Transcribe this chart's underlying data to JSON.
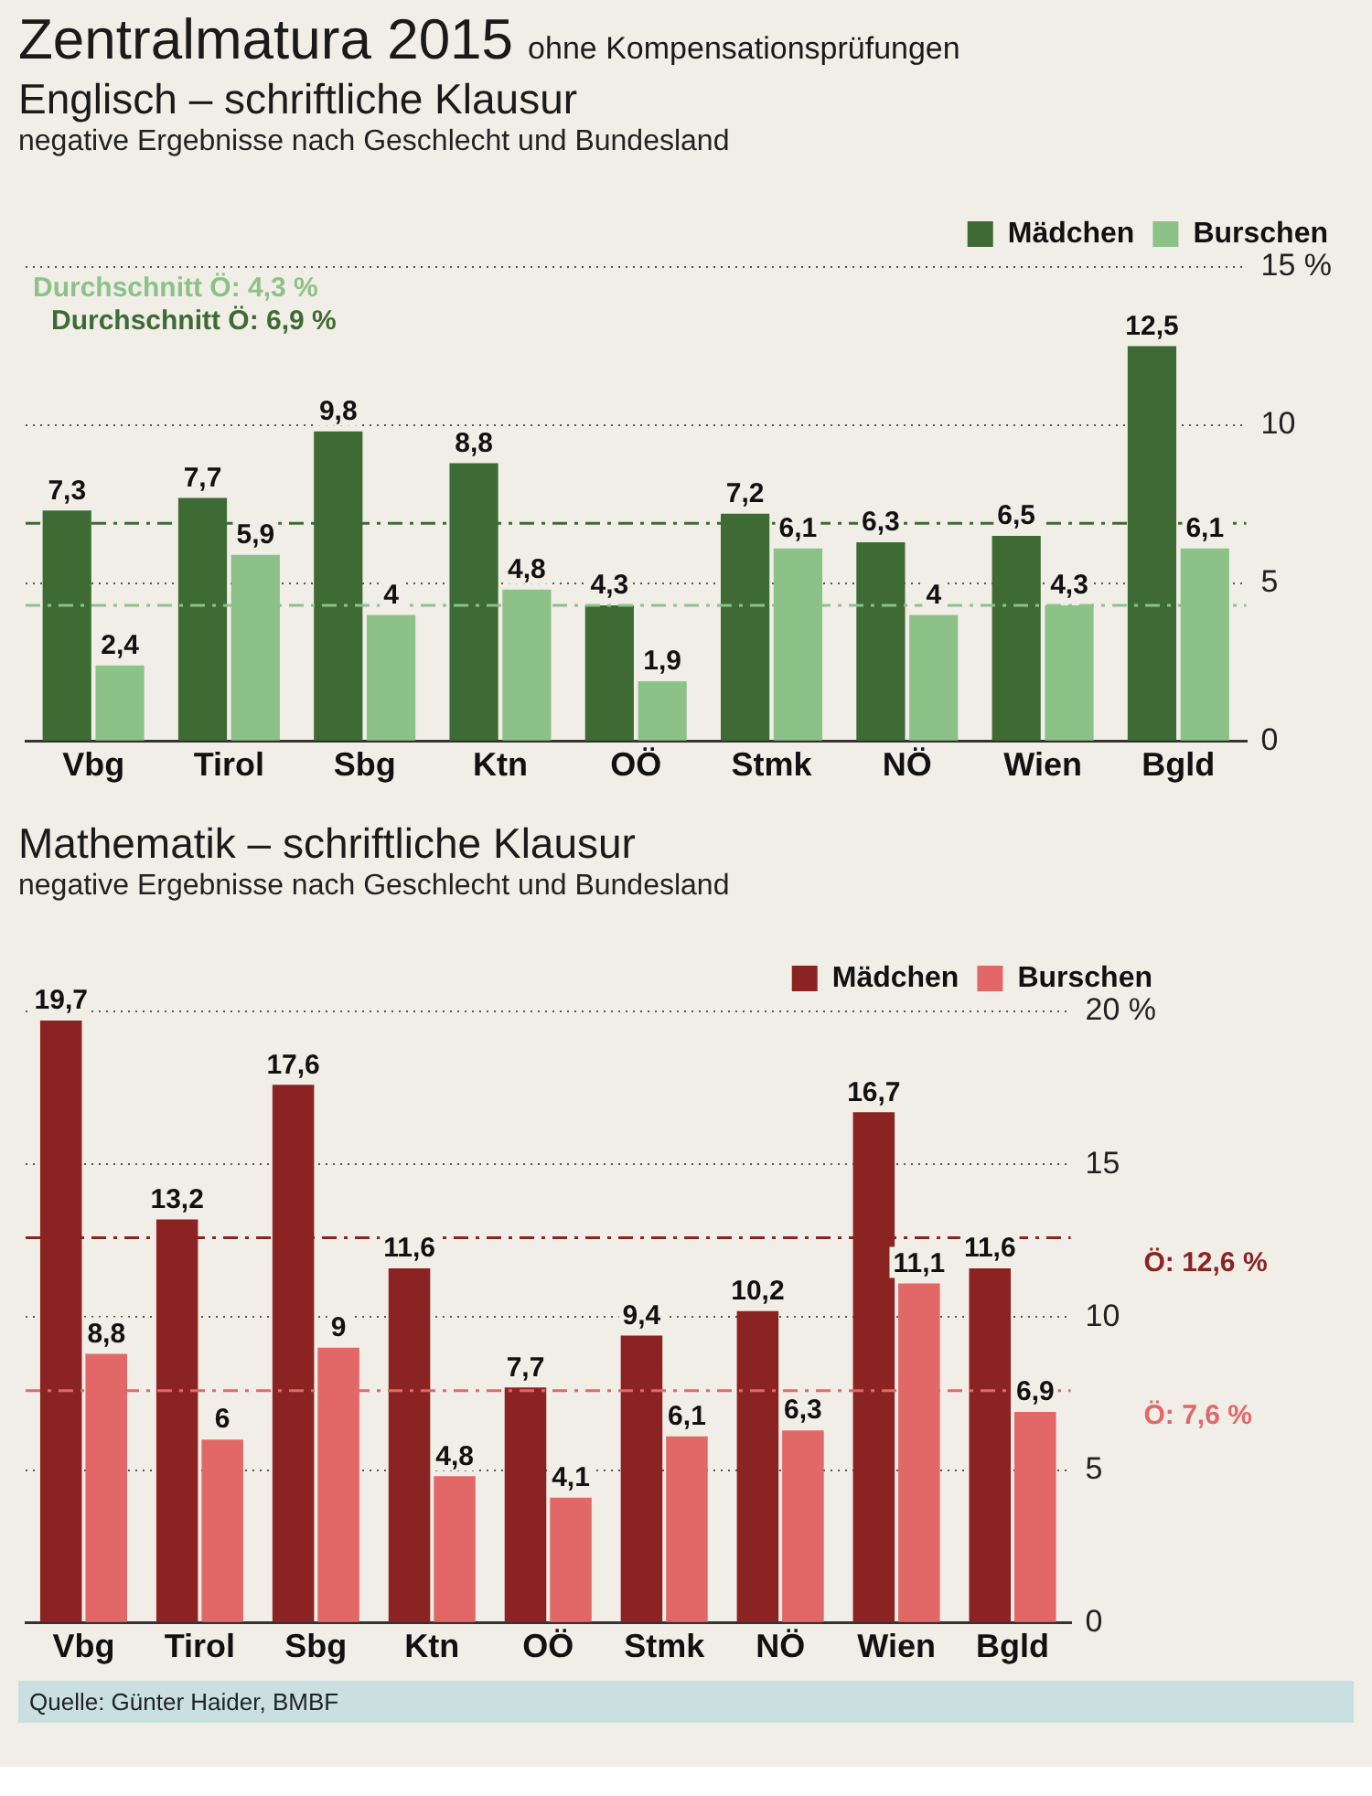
{
  "chart_data": [
    {
      "type": "bar",
      "title": "Englisch – schriftliche Klausur",
      "subtitle": "negative Ergebnisse nach Geschlecht und Bundesland",
      "annotations": [
        "Zentralmatura 2015",
        "ohne Kompensationsprüfungen"
      ],
      "categories": [
        "Vbg",
        "Tirol",
        "Sbg",
        "Ktn",
        "OÖ",
        "Stmk",
        "NÖ",
        "Wien",
        "Bgld"
      ],
      "series": [
        {
          "name": "Mädchen",
          "color": "#3e6b34",
          "values": [
            7.3,
            7.7,
            9.8,
            8.8,
            4.3,
            7.2,
            6.3,
            6.5,
            12.5
          ],
          "value_labels": [
            "7,3",
            "7,7",
            "9,8",
            "8,8",
            "4,3",
            "7,2",
            "6,3",
            "6,5",
            "12,5"
          ]
        },
        {
          "name": "Burschen",
          "color": "#8cc287",
          "values": [
            2.4,
            5.9,
            4,
            4.8,
            1.9,
            6.1,
            4,
            4.3,
            6.1
          ],
          "value_labels": [
            "2,4",
            "5,9",
            "4",
            "4,8",
            "1,9",
            "6,1",
            "4",
            "4,3",
            "6,1"
          ]
        }
      ],
      "ylim": [
        0,
        15
      ],
      "yticks": [
        0,
        5,
        10,
        {
          "value": 15,
          "label": "15 %"
        }
      ],
      "grid": "y",
      "legend": "top right",
      "ref_lines": [
        {
          "axis": "y",
          "value": 4.3,
          "label": "Durchschnitt Ö: 4,3 %",
          "color": "#8cc287",
          "line_style": "dashed"
        },
        {
          "axis": "y",
          "value": 6.9,
          "label": "Durchschnitt Ö: 6,9 %",
          "color": "#3e6b34",
          "line_style": "dashed"
        }
      ]
    },
    {
      "type": "bar",
      "title": "Mathematik – schriftliche Klausur",
      "subtitle": "negative Ergebnisse nach Geschlecht und Bundesland",
      "annotations": [
        "Quelle: Günter Haider, BMBF"
      ],
      "categories": [
        "Vbg",
        "Tirol",
        "Sbg",
        "Ktn",
        "OÖ",
        "Stmk",
        "NÖ",
        "Wien",
        "Bgld"
      ],
      "series": [
        {
          "name": "Mädchen",
          "color": "#8c2323",
          "values": [
            19.7,
            13.2,
            17.6,
            11.6,
            7.7,
            9.4,
            10.2,
            16.7,
            11.6
          ],
          "value_labels": [
            "19,7",
            "13,2",
            "17,6",
            "11,6",
            "7,7",
            "9,4",
            "10,2",
            "16,7",
            "11,6"
          ]
        },
        {
          "name": "Burschen",
          "color": "#e26868",
          "values": [
            8.8,
            6,
            9,
            4.8,
            4.1,
            6.1,
            6.3,
            11.1,
            6.9
          ],
          "value_labels": [
            "8,8",
            "6",
            "9",
            "4,8",
            "4,1",
            "6,1",
            "6,3",
            "11,1",
            "6,9"
          ]
        }
      ],
      "ylim": [
        0,
        20
      ],
      "yticks": [
        0,
        5,
        10,
        15,
        {
          "value": 20,
          "label": "20 %"
        }
      ],
      "grid": "y",
      "legend": "top right",
      "ref_lines": [
        {
          "axis": "y",
          "value": 12.6,
          "label": "Ö: 12,6 %",
          "color": "#8c2323",
          "line_style": "dashed"
        },
        {
          "axis": "y",
          "value": 7.6,
          "label": "Ö: 7,6 %",
          "color": "#e26868",
          "line_style": "dashed"
        }
      ]
    }
  ]
}
